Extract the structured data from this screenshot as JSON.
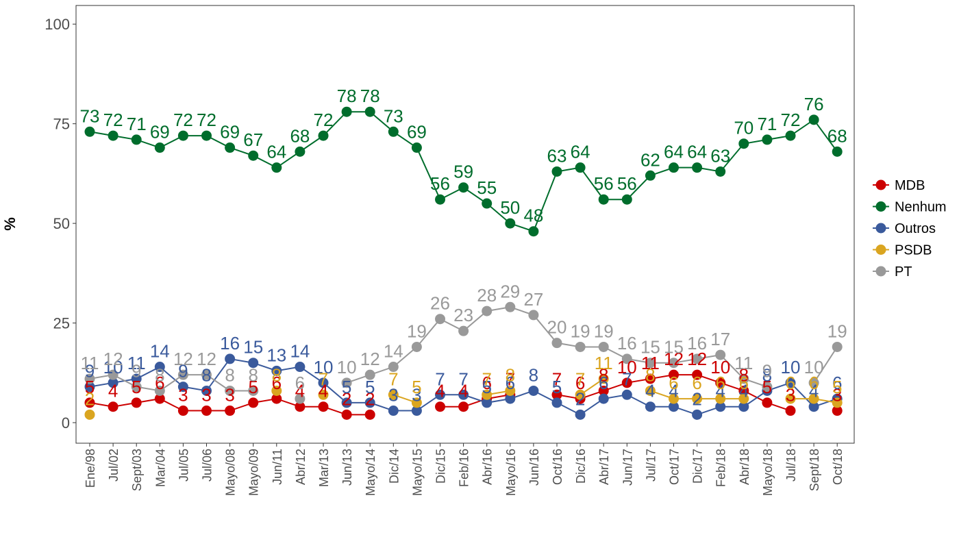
{
  "chart_data": {
    "type": "line",
    "title": "",
    "xlabel": "",
    "ylabel": "%",
    "ylim": [
      -5,
      105
    ],
    "yticks": [
      0,
      25,
      50,
      75,
      100
    ],
    "grid": false,
    "legend_position": "right",
    "categories": [
      "Ene/98",
      "Jul/02",
      "Sept/03",
      "Mar/04",
      "Jul/05",
      "Jul/06",
      "Mayo/08",
      "Mayo/09",
      "Jun/11",
      "Abr/12",
      "Mar/13",
      "Jun/13",
      "Mayo/14",
      "Dic/14",
      "Mayo/15",
      "Dic/15",
      "Feb/16",
      "Abr/16",
      "Mayo/16",
      "Jun/16",
      "Oct/16",
      "Dic/16",
      "Abr/17",
      "Jun/17",
      "Jul/17",
      "Oct/17",
      "Dic/17",
      "Feb/18",
      "Abr/18",
      "Mayo/18",
      "Jul/18",
      "Sept/18",
      "Oct/18"
    ],
    "series": [
      {
        "name": "MDB",
        "color": "#cc0000",
        "values": [
          5,
          4,
          5,
          6,
          3,
          3,
          3,
          5,
          6,
          4,
          4,
          2,
          2,
          null,
          null,
          4,
          4,
          6,
          7,
          null,
          7,
          6,
          8,
          10,
          11,
          12,
          12,
          10,
          8,
          5,
          3,
          null,
          3
        ]
      },
      {
        "name": "Nenhum",
        "color": "#006d2c",
        "values": [
          73,
          72,
          71,
          69,
          72,
          72,
          69,
          67,
          64,
          68,
          72,
          78,
          78,
          73,
          69,
          56,
          59,
          55,
          50,
          48,
          63,
          64,
          56,
          56,
          62,
          64,
          64,
          63,
          70,
          71,
          72,
          76,
          68
        ]
      },
      {
        "name": "Outros",
        "color": "#3a5a9c",
        "values": [
          9,
          10,
          11,
          14,
          9,
          8,
          16,
          15,
          13,
          14,
          10,
          5,
          5,
          3,
          3,
          7,
          7,
          5,
          6,
          8,
          5,
          2,
          6,
          7,
          4,
          4,
          2,
          4,
          4,
          8,
          10,
          4,
          6
        ]
      },
      {
        "name": "PSDB",
        "color": "#daa520",
        "values": [
          2,
          null,
          null,
          null,
          null,
          null,
          null,
          null,
          8,
          null,
          7,
          null,
          null,
          7,
          5,
          null,
          null,
          7,
          8,
          null,
          null,
          7,
          11,
          null,
          8,
          6,
          6,
          6,
          6,
          null,
          6,
          6,
          5
        ]
      },
      {
        "name": "PT",
        "color": "#999999",
        "values": [
          11,
          12,
          9,
          8,
          12,
          12,
          8,
          8,
          null,
          6,
          null,
          10,
          12,
          14,
          19,
          26,
          23,
          28,
          29,
          27,
          20,
          19,
          19,
          16,
          15,
          15,
          16,
          17,
          11,
          9,
          null,
          10,
          19
        ]
      }
    ],
    "legend": [
      "MDB",
      "Nenhum",
      "Outros",
      "PSDB",
      "PT"
    ]
  }
}
